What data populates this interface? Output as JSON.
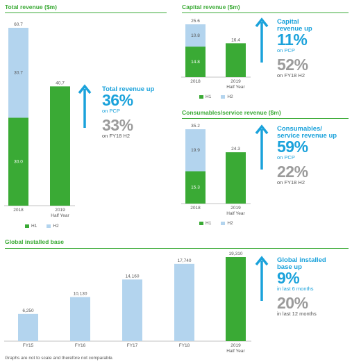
{
  "colors": {
    "h1": "#3aaa35",
    "h2": "#b3d4ee",
    "accent_green": "#3aaa35",
    "accent_blue": "#1aa2db",
    "grey": "#9b9b9b"
  },
  "total": {
    "title": "Total revenue ($m)",
    "stat": {
      "head": [
        "Total revenue up"
      ],
      "big": "36%",
      "small": "on PCP",
      "big2": "33%",
      "small2": "on FY18 H2"
    },
    "legend": [
      "H1",
      "H2"
    ]
  },
  "capital": {
    "title": "Capital revenue ($m)",
    "stat": {
      "head": [
        "Capital",
        "revenue up"
      ],
      "big": "11%",
      "small": "on PCP",
      "big2": "52%",
      "small2": "on FY18 H2"
    },
    "legend": [
      "H1",
      "H2"
    ]
  },
  "consumables": {
    "title": "Consumables/service revenue ($m)",
    "stat": {
      "head": [
        "Consumables/",
        "service revenue up"
      ],
      "big": "59%",
      "small": "on PCP",
      "big2": "22%",
      "small2": "on FY18 H2"
    },
    "legend": [
      "H1",
      "H2"
    ]
  },
  "installed": {
    "title": "Global installed base",
    "stat": {
      "head": [
        "Global installed",
        "base up"
      ],
      "big": "9%",
      "small": "in last 6 months",
      "big2": "20%",
      "small2": "in last 12 months"
    }
  },
  "footnote": "Graphs are not to scale and therefore not comparable.",
  "chart_data": [
    {
      "type": "bar",
      "title": "Total revenue ($m)",
      "categories": [
        "2018",
        "2019\nHalf Year"
      ],
      "series": [
        {
          "name": "H1",
          "values": [
            30.0,
            40.7
          ],
          "labels": [
            "30.0",
            "40.7"
          ]
        },
        {
          "name": "H2",
          "values": [
            30.7,
            null
          ],
          "labels": [
            "30.7",
            null
          ]
        }
      ],
      "totals": [
        "60.7",
        null
      ],
      "stacked": true,
      "legend": "bottom"
    },
    {
      "type": "bar",
      "title": "Capital revenue ($m)",
      "categories": [
        "2018",
        "2019\nHalf Year"
      ],
      "series": [
        {
          "name": "H1",
          "values": [
            14.8,
            16.4
          ],
          "labels": [
            "14.8",
            "16.4"
          ]
        },
        {
          "name": "H2",
          "values": [
            10.8,
            null
          ],
          "labels": [
            "10.8",
            null
          ]
        }
      ],
      "totals": [
        "25.6",
        null
      ],
      "stacked": true,
      "legend": "bottom"
    },
    {
      "type": "bar",
      "title": "Consumables/service revenue ($m)",
      "categories": [
        "2018",
        "2019\nHalf Year"
      ],
      "series": [
        {
          "name": "H1",
          "values": [
            15.3,
            24.3
          ],
          "labels": [
            "15.3",
            "24.3"
          ]
        },
        {
          "name": "H2",
          "values": [
            19.9,
            null
          ],
          "labels": [
            "19.9",
            null
          ]
        }
      ],
      "totals": [
        "35.2",
        null
      ],
      "stacked": true,
      "legend": "bottom"
    },
    {
      "type": "bar",
      "title": "Global installed base",
      "categories": [
        "FY15",
        "FY16",
        "FY17",
        "FY18",
        "2019\nHalf Year"
      ],
      "values": [
        6250,
        10130,
        14160,
        17740,
        19310
      ],
      "labels": [
        "6,250",
        "10,130",
        "14,160",
        "17,740",
        "19,310"
      ],
      "highlight_index": 4
    }
  ]
}
